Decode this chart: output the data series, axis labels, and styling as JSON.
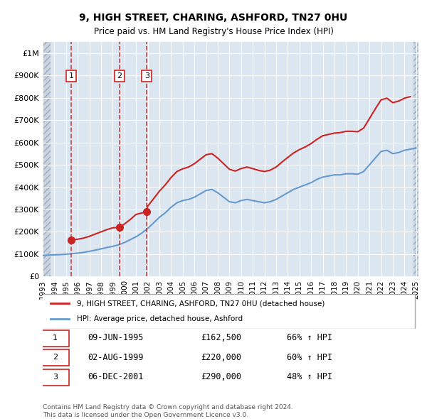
{
  "title": "9, HIGH STREET, CHARING, ASHFORD, TN27 0HU",
  "subtitle": "Price paid vs. HM Land Registry's House Price Index (HPI)",
  "hpi_label": "HPI: Average price, detached house, Ashford",
  "property_label": "9, HIGH STREET, CHARING, ASHFORD, TN27 0HU (detached house)",
  "copyright": "Contains HM Land Registry data © Crown copyright and database right 2024.\nThis data is licensed under the Open Government Licence v3.0.",
  "ylim": [
    0,
    1050000
  ],
  "yticks": [
    0,
    100000,
    200000,
    300000,
    400000,
    500000,
    600000,
    700000,
    800000,
    900000,
    1000000
  ],
  "ytick_labels": [
    "£0",
    "£100K",
    "£200K",
    "£300K",
    "£400K",
    "£500K",
    "£600K",
    "£700K",
    "£800K",
    "£900K",
    "£1M"
  ],
  "hpi_color": "#6699cc",
  "property_color": "#cc2222",
  "bg_color": "#dce6f0",
  "hatch_color": "#b0b8c8",
  "grid_color": "#ffffff",
  "sales": [
    {
      "label": "1",
      "date": "09-JUN-1995",
      "date_num": 1995.44,
      "price": 162500,
      "pct": "66%",
      "x": 1995.44
    },
    {
      "label": "2",
      "date": "02-AUG-1999",
      "date_num": 1999.58,
      "price": 220000,
      "pct": "60%",
      "x": 1999.58
    },
    {
      "label": "3",
      "date": "06-DEC-2001",
      "date_num": 2001.92,
      "price": 290000,
      "pct": "48%",
      "x": 2001.92
    }
  ],
  "hpi_data": {
    "x": [
      1993,
      1993.5,
      1994,
      1994.5,
      1995,
      1995.5,
      1996,
      1996.5,
      1997,
      1997.5,
      1998,
      1998.5,
      1999,
      1999.5,
      2000,
      2000.5,
      2001,
      2001.5,
      2002,
      2002.5,
      2003,
      2003.5,
      2004,
      2004.5,
      2005,
      2005.5,
      2006,
      2006.5,
      2007,
      2007.5,
      2008,
      2008.5,
      2009,
      2009.5,
      2010,
      2010.5,
      2011,
      2011.5,
      2012,
      2012.5,
      2013,
      2013.5,
      2014,
      2014.5,
      2015,
      2015.5,
      2016,
      2016.5,
      2017,
      2017.5,
      2018,
      2018.5,
      2019,
      2019.5,
      2020,
      2020.5,
      2021,
      2021.5,
      2022,
      2022.5,
      2023,
      2023.5,
      2024,
      2024.5,
      2025
    ],
    "y": [
      95000,
      96000,
      97000,
      98000,
      100000,
      102000,
      105000,
      108000,
      113000,
      118000,
      124000,
      130000,
      135000,
      142000,
      152000,
      165000,
      178000,
      195000,
      215000,
      240000,
      265000,
      285000,
      310000,
      330000,
      340000,
      345000,
      355000,
      370000,
      385000,
      390000,
      375000,
      355000,
      335000,
      330000,
      340000,
      345000,
      340000,
      335000,
      330000,
      335000,
      345000,
      360000,
      375000,
      390000,
      400000,
      410000,
      420000,
      435000,
      445000,
      450000,
      455000,
      455000,
      460000,
      460000,
      458000,
      470000,
      500000,
      530000,
      560000,
      565000,
      550000,
      555000,
      565000,
      570000,
      575000
    ]
  },
  "property_hpi_data": {
    "x": [
      1995.44,
      1996,
      1996.5,
      1997,
      1997.5,
      1998,
      1998.5,
      1999,
      1999.58,
      2000,
      2000.5,
      2001,
      2001.92,
      2002,
      2002.5,
      2003,
      2003.5,
      2004,
      2004.5,
      2005,
      2005.5,
      2006,
      2006.5,
      2007,
      2007.5,
      2008,
      2008.5,
      2009,
      2009.5,
      2010,
      2010.5,
      2011,
      2011.5,
      2012,
      2012.5,
      2013,
      2013.5,
      2014,
      2014.5,
      2015,
      2015.5,
      2016,
      2016.5,
      2017,
      2017.5,
      2018,
      2018.5,
      2019,
      2019.5,
      2020,
      2020.5,
      2021,
      2021.5,
      2022,
      2022.5,
      2023,
      2023.5,
      2024,
      2024.5
    ],
    "y": [
      162500,
      167000,
      172000,
      180000,
      190000,
      200000,
      210000,
      218000,
      220000,
      235000,
      255000,
      278000,
      290000,
      315000,
      348000,
      382000,
      410000,
      443000,
      470000,
      482000,
      490000,
      505000,
      525000,
      545000,
      550000,
      530000,
      505000,
      480000,
      472000,
      483000,
      490000,
      483000,
      475000,
      470000,
      476000,
      490000,
      512000,
      533000,
      553000,
      568000,
      580000,
      595000,
      614000,
      630000,
      636000,
      642000,
      644000,
      650000,
      650000,
      648000,
      664000,
      707000,
      750000,
      791000,
      798000,
      778000,
      785000,
      798000,
      805000
    ]
  },
  "xticks": [
    1993,
    1994,
    1995,
    1996,
    1997,
    1998,
    1999,
    2000,
    2001,
    2002,
    2003,
    2004,
    2005,
    2006,
    2007,
    2008,
    2009,
    2010,
    2011,
    2012,
    2013,
    2014,
    2015,
    2016,
    2017,
    2018,
    2019,
    2020,
    2021,
    2022,
    2023,
    2024,
    2025
  ]
}
